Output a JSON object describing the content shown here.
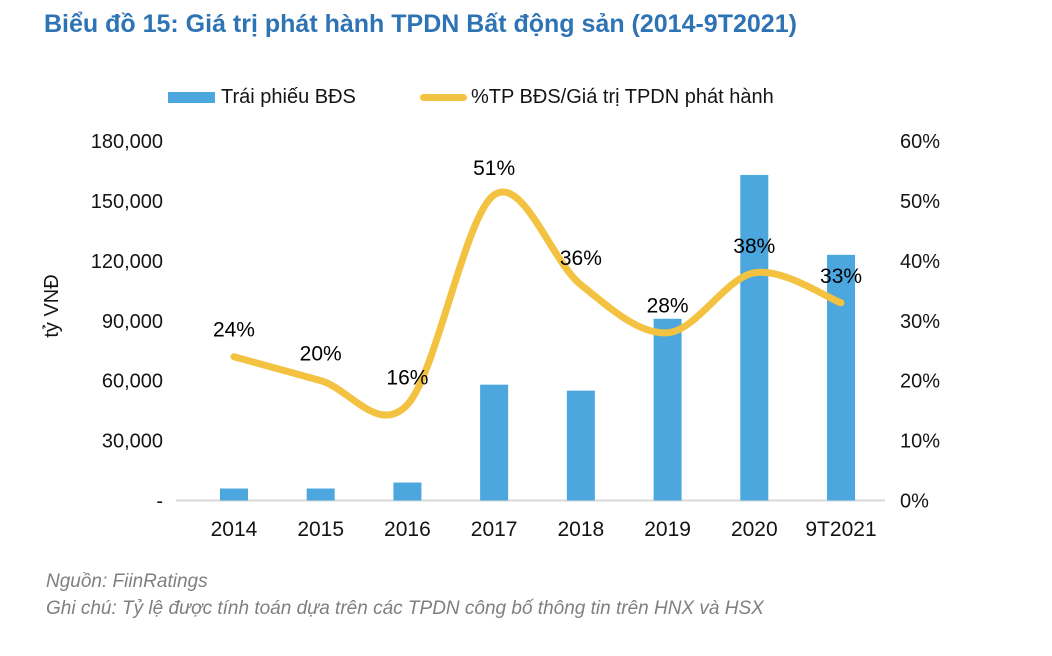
{
  "title": "Biểu đồ 15: Giá trị phát hành TPDN Bất động sản (2014-9T2021)",
  "legend": [
    {
      "label": "Trái phiếu BĐS",
      "type": "bar"
    },
    {
      "label": "%TP BĐS/Giá trị TPDN phát hành",
      "type": "line"
    }
  ],
  "footer": {
    "source": "Nguồn: FiinRatings",
    "note": "Ghi chú: Tỷ lệ được tính toán dựa trên các TPDN công bố thông tin trên HNX và HSX"
  },
  "colors": {
    "bar": "#4BA7DD",
    "line": "#F2C240",
    "title": "#2E74B5",
    "footer": "#7F7F7F",
    "axis_text": "#141414",
    "baseline": "#D9D9D9"
  },
  "chart_data": {
    "type": "bar+line combo",
    "title": "Biểu đồ 15: Giá trị phát hành TPDN Bất động sản (2014-9T2021)",
    "categories": [
      "2014",
      "2015",
      "2016",
      "2017",
      "2018",
      "2019",
      "2020",
      "9T2021"
    ],
    "series": [
      {
        "name": "Trái phiếu BĐS",
        "type": "bar",
        "axis": "left",
        "unit": "tỷ VNĐ",
        "values": [
          6000,
          6000,
          9000,
          58000,
          55000,
          91000,
          163000,
          123000
        ]
      },
      {
        "name": "%TP BĐS/Giá trị TPDN phát hành",
        "type": "line",
        "axis": "right",
        "unit": "%",
        "values": [
          24,
          20,
          16,
          51,
          36,
          28,
          38,
          33
        ],
        "point_labels": [
          "24%",
          "20%",
          "16%",
          "51%",
          "36%",
          "28%",
          "38%",
          "33%"
        ]
      }
    ],
    "left_axis": {
      "label": "tỷ VNĐ",
      "min": 0,
      "max": 180000,
      "step": 30000,
      "tick_labels": [
        "-",
        "30,000",
        "60,000",
        "90,000",
        "120,000",
        "150,000",
        "180,000"
      ]
    },
    "right_axis": {
      "min": 0,
      "max": 60,
      "step": 10,
      "tick_labels": [
        "0%",
        "10%",
        "20%",
        "30%",
        "40%",
        "50%",
        "60%"
      ]
    },
    "grid": false,
    "legend_position": "top"
  }
}
